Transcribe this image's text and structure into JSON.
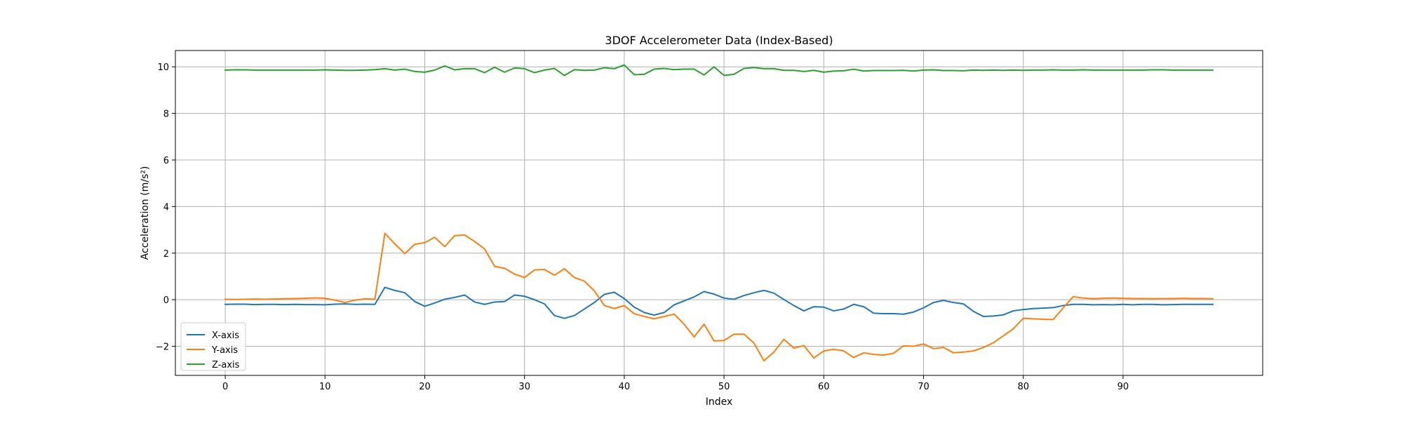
{
  "chart_data": {
    "type": "line",
    "title": "3DOF Accelerometer Data (Index-Based)",
    "xlabel": "Index",
    "ylabel": "Acceleration (m/s²)",
    "xlim": [
      -5,
      104
    ],
    "ylim": [
      -3.25,
      10.7
    ],
    "xticks": [
      0,
      10,
      20,
      30,
      40,
      50,
      60,
      70,
      80,
      90
    ],
    "yticks": [
      -2,
      0,
      2,
      4,
      6,
      8,
      10
    ],
    "grid": true,
    "legend_position": "lower-left",
    "series": [
      {
        "name": "X-axis",
        "color": "#1f77b4",
        "values": [
          -0.2,
          -0.19,
          -0.19,
          -0.21,
          -0.2,
          -0.2,
          -0.21,
          -0.2,
          -0.21,
          -0.21,
          -0.22,
          -0.19,
          -0.18,
          -0.2,
          -0.19,
          -0.2,
          0.53,
          0.4,
          0.3,
          -0.08,
          -0.28,
          -0.14,
          0.02,
          0.1,
          0.2,
          -0.1,
          -0.2,
          -0.1,
          -0.08,
          0.2,
          0.15,
          0.0,
          -0.18,
          -0.68,
          -0.8,
          -0.68,
          -0.4,
          -0.12,
          0.23,
          0.32,
          0.05,
          -0.32,
          -0.55,
          -0.66,
          -0.55,
          -0.22,
          -0.05,
          0.12,
          0.35,
          0.24,
          0.07,
          0.02,
          0.18,
          0.3,
          0.4,
          0.28,
          0.01,
          -0.25,
          -0.48,
          -0.3,
          -0.32,
          -0.48,
          -0.4,
          -0.2,
          -0.3,
          -0.58,
          -0.6,
          -0.6,
          -0.62,
          -0.53,
          -0.35,
          -0.12,
          -0.03,
          -0.12,
          -0.18,
          -0.5,
          -0.72,
          -0.7,
          -0.65,
          -0.48,
          -0.42,
          -0.38,
          -0.36,
          -0.34,
          -0.25,
          -0.2,
          -0.2,
          -0.22,
          -0.21,
          -0.22,
          -0.2,
          -0.22,
          -0.2,
          -0.2,
          -0.22,
          -0.21,
          -0.2,
          -0.2,
          -0.2,
          -0.2
        ]
      },
      {
        "name": "Y-axis",
        "color": "#ff7f0e",
        "values": [
          0.02,
          0.01,
          0.02,
          0.03,
          0.02,
          0.03,
          0.04,
          0.05,
          0.06,
          0.08,
          0.06,
          -0.02,
          -0.12,
          -0.02,
          0.04,
          0.02,
          2.85,
          2.4,
          1.98,
          2.38,
          2.45,
          2.68,
          2.28,
          2.75,
          2.78,
          2.5,
          2.18,
          1.43,
          1.35,
          1.1,
          0.95,
          1.28,
          1.3,
          1.05,
          1.33,
          0.95,
          0.8,
          0.38,
          -0.25,
          -0.38,
          -0.25,
          -0.6,
          -0.72,
          -0.82,
          -0.72,
          -0.62,
          -1.05,
          -1.6,
          -1.05,
          -1.77,
          -1.75,
          -1.48,
          -1.48,
          -1.86,
          -2.62,
          -2.25,
          -1.7,
          -2.08,
          -1.97,
          -2.5,
          -2.2,
          -2.13,
          -2.2,
          -2.48,
          -2.28,
          -2.35,
          -2.38,
          -2.3,
          -1.98,
          -2.0,
          -1.9,
          -2.1,
          -2.05,
          -2.28,
          -2.25,
          -2.2,
          -2.05,
          -1.85,
          -1.55,
          -1.25,
          -0.8,
          -0.82,
          -0.84,
          -0.85,
          -0.35,
          0.13,
          0.07,
          0.04,
          0.06,
          0.07,
          0.06,
          0.05,
          0.05,
          0.04,
          0.05,
          0.05,
          0.06,
          0.05,
          0.05,
          0.04
        ]
      },
      {
        "name": "Z-axis",
        "color": "#2ca02c",
        "values": [
          9.86,
          9.87,
          9.87,
          9.86,
          9.86,
          9.86,
          9.86,
          9.86,
          9.86,
          9.86,
          9.87,
          9.86,
          9.85,
          9.85,
          9.86,
          9.88,
          9.92,
          9.86,
          9.9,
          9.8,
          9.77,
          9.86,
          10.04,
          9.87,
          9.92,
          9.92,
          9.75,
          9.98,
          9.77,
          9.95,
          9.92,
          9.75,
          9.86,
          9.93,
          9.63,
          9.88,
          9.85,
          9.86,
          9.96,
          9.92,
          10.08,
          9.66,
          9.68,
          9.9,
          9.93,
          9.88,
          9.9,
          9.9,
          9.65,
          10.0,
          9.63,
          9.68,
          9.93,
          9.97,
          9.92,
          9.92,
          9.85,
          9.85,
          9.8,
          9.85,
          9.77,
          9.82,
          9.83,
          9.9,
          9.82,
          9.84,
          9.84,
          9.84,
          9.85,
          9.82,
          9.86,
          9.87,
          9.84,
          9.84,
          9.83,
          9.86,
          9.85,
          9.86,
          9.85,
          9.86,
          9.85,
          9.86,
          9.86,
          9.87,
          9.86,
          9.86,
          9.87,
          9.86,
          9.86,
          9.86,
          9.86,
          9.86,
          9.86,
          9.87,
          9.87,
          9.86,
          9.86,
          9.86,
          9.86,
          9.86
        ]
      }
    ]
  }
}
